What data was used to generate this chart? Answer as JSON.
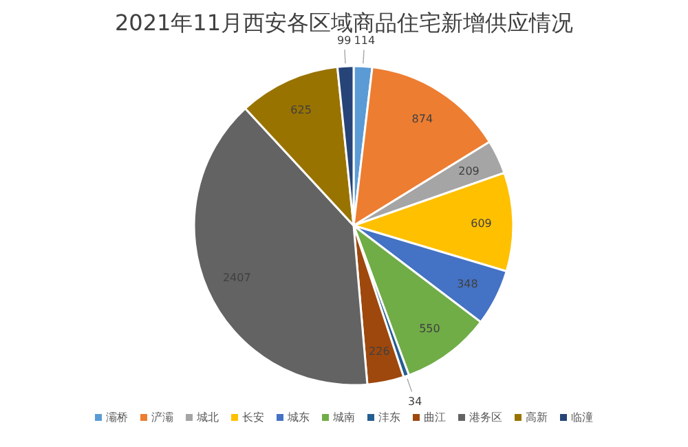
{
  "chart_data": {
    "type": "pie",
    "title": "2021年11月西安各区域商品住宅新增供应情况",
    "categories": [
      "灞桥",
      "浐灞",
      "城北",
      "长安",
      "城东",
      "城南",
      "沣东",
      "曲江",
      "港务区",
      "高新",
      "临潼"
    ],
    "values": [
      114,
      874,
      209,
      609,
      348,
      550,
      34,
      226,
      2407,
      625,
      99
    ],
    "colors": [
      "#5b9bd5",
      "#ed7d31",
      "#a5a5a5",
      "#ffc000",
      "#4472c4",
      "#70ad47",
      "#255e91",
      "#9e480e",
      "#636363",
      "#997300",
      "#264478"
    ],
    "data_labels": true,
    "legend": "bottom"
  }
}
